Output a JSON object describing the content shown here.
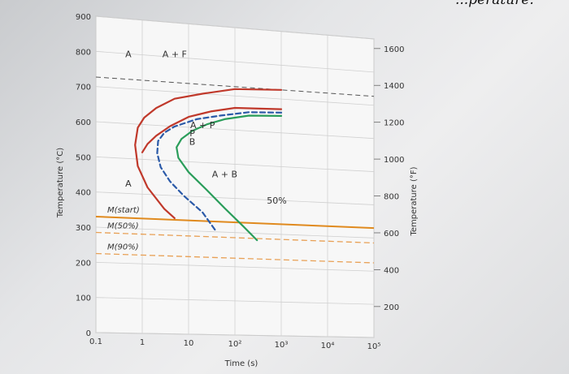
{
  "page_heading": "...perature.",
  "chart_data": {
    "type": "line",
    "title": "",
    "xlabel": "Time (s)",
    "ylabel_left": "Temperature (°C)",
    "ylabel_right": "Temperature (°F)",
    "x_scale": "log",
    "xlim": [
      0.1,
      100000
    ],
    "ylim": [
      0,
      900
    ],
    "grid": true,
    "x_ticks": [
      {
        "value": 0.1,
        "label": "0.1"
      },
      {
        "value": 1,
        "label": "1"
      },
      {
        "value": 10,
        "label": "10"
      },
      {
        "value": 100,
        "label": "10²"
      },
      {
        "value": 1000,
        "label": "10³"
      },
      {
        "value": 10000,
        "label": "10⁴"
      },
      {
        "value": 100000,
        "label": "10⁵"
      }
    ],
    "y_ticks_c": [
      0,
      100,
      200,
      300,
      400,
      500,
      600,
      700,
      800,
      900
    ],
    "y_ticks_f": [
      200,
      400,
      600,
      800,
      1000,
      1200,
      1400,
      1600
    ],
    "series": [
      {
        "name": "",
        "color": "#c0392b",
        "style": "solid",
        "x": [
          1000,
          100,
          20,
          5,
          2,
          1.1,
          0.8,
          0.7,
          0.8,
          1.3,
          3,
          5
        ],
        "y": [
          727,
          720,
          700,
          680,
          650,
          620,
          590,
          540,
          480,
          420,
          360,
          335
        ]
      },
      {
        "name": "",
        "color": "#c0392b",
        "style": "solid",
        "x": [
          1000,
          100,
          30,
          10,
          4,
          2,
          1.3,
          1.0
        ],
        "y": [
          670,
          665,
          650,
          630,
          600,
          570,
          545,
          520
        ]
      },
      {
        "name": "",
        "color": "#2b5aa8",
        "style": "dashed",
        "x": [
          1000,
          200,
          50,
          15,
          5,
          3,
          2.2,
          2.1,
          2.5,
          4,
          8,
          20,
          40
        ],
        "y": [
          660,
          655,
          640,
          625,
          600,
          580,
          555,
          520,
          480,
          440,
          400,
          355,
          300
        ]
      },
      {
        "name": "",
        "color": "#2a9d5a",
        "style": "solid",
        "x": [
          1000,
          200,
          60,
          25,
          12,
          7,
          5.5,
          6,
          10,
          25,
          60,
          150,
          300
        ],
        "y": [
          650,
          645,
          630,
          612,
          590,
          565,
          540,
          510,
          470,
          420,
          370,
          320,
          280
        ]
      }
    ],
    "horizontal_lines": [
      {
        "label": "M(start)",
        "y": 330,
        "color": "#e08a1e",
        "style": "solid"
      },
      {
        "label": "M(50%)",
        "y": 285,
        "color": "#e8a055",
        "style": "dashed"
      },
      {
        "label": "M(90%)",
        "y": 225,
        "color": "#e8a055",
        "style": "dashed"
      }
    ],
    "eutectoid_line": {
      "y": 727,
      "color": "#555",
      "style": "dashed"
    },
    "annotations": [
      {
        "text": "A",
        "x": 0.5,
        "y": 790
      },
      {
        "text": "A + F",
        "x": 5,
        "y": 800
      },
      {
        "text": "A + P",
        "x": 20,
        "y": 600
      },
      {
        "text": "P",
        "x": 12,
        "y": 575
      },
      {
        "text": "B",
        "x": 12,
        "y": 550
      },
      {
        "text": "A",
        "x": 0.5,
        "y": 420
      },
      {
        "text": "A + B",
        "x": 60,
        "y": 460
      },
      {
        "text": "50%",
        "x": 800,
        "y": 390
      }
    ]
  }
}
